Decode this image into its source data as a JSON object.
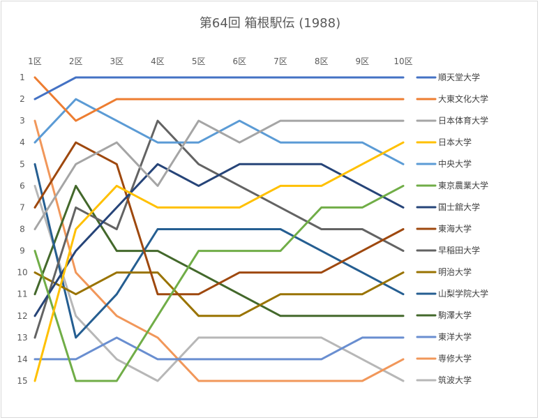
{
  "chart_data": {
    "type": "line",
    "title": "第64回 箱根駅伝 (1988)",
    "x": [
      "1区",
      "2区",
      "3区",
      "4区",
      "5区",
      "6区",
      "7区",
      "8区",
      "9区",
      "10区"
    ],
    "y_ticks": [
      "1",
      "2",
      "3",
      "4",
      "5",
      "6",
      "7",
      "8",
      "9",
      "10",
      "11",
      "12",
      "13",
      "14",
      "15"
    ],
    "ylim": [
      1,
      15
    ],
    "y_inverted": true,
    "x_axis_position": "top",
    "grid": false,
    "legend_position": "right",
    "series": [
      {
        "name": "順天堂大学",
        "color": "#4472C4",
        "values": [
          2,
          1,
          1,
          1,
          1,
          1,
          1,
          1,
          1,
          1
        ]
      },
      {
        "name": "大東文化大学",
        "color": "#ED7D31",
        "values": [
          1,
          3,
          2,
          2,
          2,
          2,
          2,
          2,
          2,
          2
        ]
      },
      {
        "name": "日本体育大学",
        "color": "#A5A5A5",
        "values": [
          8,
          5,
          4,
          6,
          3,
          4,
          3,
          3,
          3,
          3
        ]
      },
      {
        "name": "日本大学",
        "color": "#FFC000",
        "values": [
          15,
          8,
          6,
          7,
          7,
          7,
          6,
          6,
          5,
          4
        ]
      },
      {
        "name": "中央大学",
        "color": "#5B9BD5",
        "values": [
          4,
          2,
          3,
          4,
          4,
          3,
          4,
          4,
          4,
          5
        ]
      },
      {
        "name": "東京農業大学",
        "color": "#70AD47",
        "values": [
          9,
          15,
          15,
          12,
          9,
          9,
          9,
          7,
          7,
          6
        ]
      },
      {
        "name": "国士舘大学",
        "color": "#264478",
        "values": [
          12,
          9,
          7,
          5,
          6,
          5,
          5,
          5,
          6,
          7
        ]
      },
      {
        "name": "東海大学",
        "color": "#9E480E",
        "values": [
          7,
          4,
          5,
          11,
          11,
          10,
          10,
          10,
          9,
          8
        ]
      },
      {
        "name": "早稲田大学",
        "color": "#636363",
        "values": [
          13,
          7,
          8,
          3,
          5,
          6,
          7,
          8,
          8,
          9
        ]
      },
      {
        "name": "明治大学",
        "color": "#997300",
        "values": [
          10,
          11,
          10,
          10,
          12,
          12,
          11,
          11,
          11,
          10
        ]
      },
      {
        "name": "山梨学院大学",
        "color": "#255E91",
        "values": [
          5,
          13,
          11,
          8,
          8,
          8,
          8,
          9,
          10,
          11
        ]
      },
      {
        "name": "駒澤大学",
        "color": "#43682B",
        "values": [
          11,
          6,
          9,
          9,
          10,
          11,
          12,
          12,
          12,
          12
        ]
      },
      {
        "name": "東洋大学",
        "color": "#698ED0",
        "values": [
          14,
          14,
          13,
          14,
          14,
          14,
          14,
          14,
          13,
          13
        ]
      },
      {
        "name": "専修大学",
        "color": "#F1975A",
        "values": [
          3,
          10,
          12,
          13,
          15,
          15,
          15,
          15,
          15,
          14
        ]
      },
      {
        "name": "筑波大学",
        "color": "#B7B7B7",
        "values": [
          6,
          12,
          14,
          15,
          13,
          13,
          13,
          13,
          14,
          15
        ]
      }
    ]
  }
}
